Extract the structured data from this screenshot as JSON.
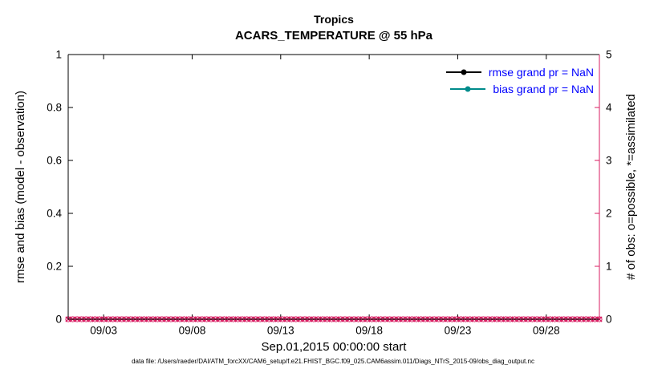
{
  "figure": {
    "title_region": "Tropics",
    "title_variable": "ACARS_TEMPERATURE @ 55 hPa"
  },
  "axes": {
    "left": {
      "label": "rmse and bias (model - observation)",
      "color": "#000000"
    },
    "right": {
      "label": "# of obs: o=possible, *=assimilated",
      "color": "#d81b60"
    },
    "x": {
      "label": "Sep.01,2015 00:00:00 start"
    }
  },
  "legend": {
    "items": [
      {
        "label": "rmse grand pr = NaN",
        "line_color": "#000000",
        "text_color": "#0000ff",
        "marker": "filled-circle"
      },
      {
        "label": "bias grand pr = NaN",
        "line_color": "#008b8b",
        "text_color": "#0000ff",
        "marker": "filled-circle"
      }
    ]
  },
  "footer": {
    "text": "data file: /Users/raeder/DAI/ATM_forcXX/CAM6_setup/f.e21.FHIST_BGC.f09_025.CAM6assim.011/Diags_NTrS_2015-09/obs_diag_output.nc"
  },
  "chart_data": {
    "type": "line",
    "title": "Tropics",
    "subtitle": "ACARS_TEMPERATURE @ 55 hPa",
    "x_axis": {
      "label": "Sep.01,2015 00:00:00 start",
      "start_day": 1,
      "end_day": 31,
      "tick_days": [
        3,
        8,
        13,
        18,
        23,
        28
      ],
      "tick_labels": [
        "09/03",
        "09/08",
        "09/13",
        "09/18",
        "09/23",
        "09/28"
      ]
    },
    "left_axis": {
      "label": "rmse and bias (model - observation)",
      "ylim": [
        0,
        1
      ],
      "ticks": [
        0,
        0.2,
        0.4,
        0.6,
        0.8,
        1
      ]
    },
    "right_axis": {
      "label": "# of obs: o=possible, *=assimilated",
      "ylim": [
        0,
        5
      ],
      "ticks": [
        0,
        1,
        2,
        3,
        4,
        5
      ]
    },
    "grid": false,
    "legend_position": "top-right-inside",
    "series": [
      {
        "name": "rmse",
        "axis": "left",
        "color": "#000000",
        "grand_value": "NaN",
        "values_plotted": "none (NaN)"
      },
      {
        "name": "bias",
        "axis": "left",
        "color": "#008b8b",
        "grand_value": "NaN",
        "values_plotted": "none (NaN)"
      },
      {
        "name": "possible_obs",
        "axis": "right",
        "color": "#d81b60",
        "marker": "o",
        "constant_value": 0,
        "n_points": 120
      },
      {
        "name": "assimilated_obs",
        "axis": "right",
        "color": "#d81b60",
        "marker": "x",
        "constant_value": 0,
        "n_points": 120
      }
    ]
  }
}
